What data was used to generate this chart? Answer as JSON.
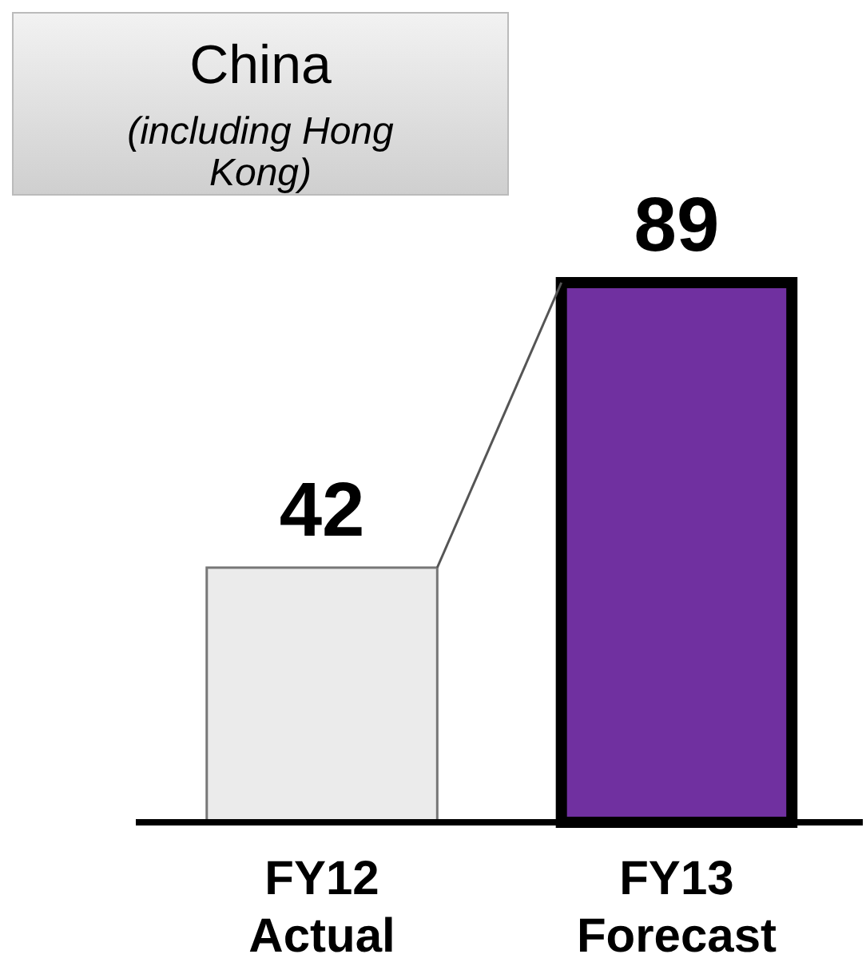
{
  "chart_data": {
    "type": "bar",
    "title": "China",
    "subtitle": "(including Hong Kong)",
    "categories": [
      "FY12\nActual",
      "FY13\nForecast"
    ],
    "values": [
      42,
      89
    ],
    "colors": [
      "#ebebeb",
      "#7030a0"
    ],
    "data_labels": true
  }
}
